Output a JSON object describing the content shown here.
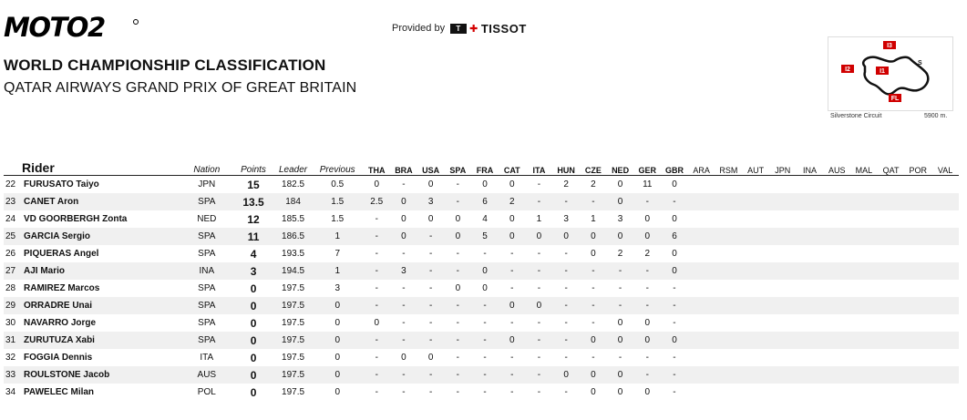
{
  "header": {
    "logo_text": "MOTO2",
    "provided_label": "Provided by",
    "sponsor": "TISSOT",
    "title": "WORLD CHAMPIONSHIP CLASSIFICATION",
    "subtitle": "QATAR AIRWAYS GRAND PRIX OF GREAT BRITAIN"
  },
  "circuit": {
    "name": "Silverstone Circuit",
    "length": "5900 m.",
    "markers": [
      "I1",
      "I2",
      "I3",
      "FL",
      "S"
    ]
  },
  "table": {
    "headers": {
      "rider": "Rider",
      "nation": "Nation",
      "points": "Points",
      "leader": "Leader",
      "previous": "Previous"
    },
    "races": [
      "THA",
      "BRA",
      "USA",
      "SPA",
      "FRA",
      "CAT",
      "ITA",
      "HUN",
      "CZE",
      "NED",
      "GER",
      "GBR",
      "ARA",
      "RSM",
      "AUT",
      "JPN",
      "INA",
      "AUS",
      "MAL",
      "QAT",
      "POR",
      "VAL"
    ],
    "completed_races": 12,
    "rows": [
      {
        "pos": "22",
        "name": "FURUSATO Taiyo",
        "nation": "JPN",
        "points": "15",
        "leader": "182.5",
        "previous": "0.5",
        "results": [
          "0",
          "-",
          "0",
          "-",
          "0",
          "0",
          "-",
          "2",
          "2",
          "0",
          "11",
          "0"
        ]
      },
      {
        "pos": "23",
        "name": "CANET Aron",
        "nation": "SPA",
        "points": "13.5",
        "leader": "184",
        "previous": "1.5",
        "results": [
          "2.5",
          "0",
          "3",
          "-",
          "6",
          "2",
          "-",
          "-",
          "-",
          "0",
          "-",
          "-"
        ]
      },
      {
        "pos": "24",
        "name": "VD GOORBERGH Zonta",
        "nation": "NED",
        "points": "12",
        "leader": "185.5",
        "previous": "1.5",
        "results": [
          "-",
          "0",
          "0",
          "0",
          "4",
          "0",
          "1",
          "3",
          "1",
          "3",
          "0",
          "0"
        ]
      },
      {
        "pos": "25",
        "name": "GARCIA Sergio",
        "nation": "SPA",
        "points": "11",
        "leader": "186.5",
        "previous": "1",
        "results": [
          "-",
          "0",
          "-",
          "0",
          "5",
          "0",
          "0",
          "0",
          "0",
          "0",
          "0",
          "6"
        ]
      },
      {
        "pos": "26",
        "name": "PIQUERAS Angel",
        "nation": "SPA",
        "points": "4",
        "leader": "193.5",
        "previous": "7",
        "results": [
          "-",
          "-",
          "-",
          "-",
          "-",
          "-",
          "-",
          "-",
          "0",
          "2",
          "2",
          "0"
        ]
      },
      {
        "pos": "27",
        "name": "AJI Mario",
        "nation": "INA",
        "points": "3",
        "leader": "194.5",
        "previous": "1",
        "results": [
          "-",
          "3",
          "-",
          "-",
          "0",
          "-",
          "-",
          "-",
          "-",
          "-",
          "-",
          "0"
        ]
      },
      {
        "pos": "28",
        "name": "RAMIREZ Marcos",
        "nation": "SPA",
        "points": "0",
        "leader": "197.5",
        "previous": "3",
        "results": [
          "-",
          "-",
          "-",
          "0",
          "0",
          "-",
          "-",
          "-",
          "-",
          "-",
          "-",
          "-"
        ]
      },
      {
        "pos": "29",
        "name": "ORRADRE Unai",
        "nation": "SPA",
        "points": "0",
        "leader": "197.5",
        "previous": "0",
        "results": [
          "-",
          "-",
          "-",
          "-",
          "-",
          "0",
          "0",
          "-",
          "-",
          "-",
          "-",
          "-"
        ]
      },
      {
        "pos": "30",
        "name": "NAVARRO Jorge",
        "nation": "SPA",
        "points": "0",
        "leader": "197.5",
        "previous": "0",
        "results": [
          "0",
          "-",
          "-",
          "-",
          "-",
          "-",
          "-",
          "-",
          "-",
          "0",
          "0",
          "-"
        ]
      },
      {
        "pos": "31",
        "name": "ZURUTUZA Xabi",
        "nation": "SPA",
        "points": "0",
        "leader": "197.5",
        "previous": "0",
        "results": [
          "-",
          "-",
          "-",
          "-",
          "-",
          "0",
          "-",
          "-",
          "0",
          "0",
          "0",
          "0"
        ]
      },
      {
        "pos": "32",
        "name": "FOGGIA Dennis",
        "nation": "ITA",
        "points": "0",
        "leader": "197.5",
        "previous": "0",
        "results": [
          "-",
          "0",
          "0",
          "-",
          "-",
          "-",
          "-",
          "-",
          "-",
          "-",
          "-",
          "-"
        ]
      },
      {
        "pos": "33",
        "name": "ROULSTONE Jacob",
        "nation": "AUS",
        "points": "0",
        "leader": "197.5",
        "previous": "0",
        "results": [
          "-",
          "-",
          "-",
          "-",
          "-",
          "-",
          "-",
          "0",
          "0",
          "0",
          "-",
          "-"
        ]
      },
      {
        "pos": "34",
        "name": "PAWELEC Milan",
        "nation": "POL",
        "points": "0",
        "leader": "197.5",
        "previous": "0",
        "results": [
          "-",
          "-",
          "-",
          "-",
          "-",
          "-",
          "-",
          "-",
          "0",
          "0",
          "0",
          "-"
        ]
      }
    ]
  }
}
